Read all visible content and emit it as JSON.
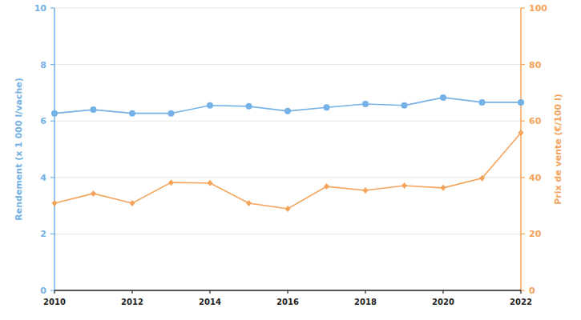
{
  "chart_data": {
    "type": "line",
    "x": [
      2010,
      2011,
      2012,
      2013,
      2014,
      2015,
      2016,
      2017,
      2018,
      2019,
      2020,
      2021,
      2022
    ],
    "xlim": [
      2010,
      2022
    ],
    "xticks": [
      2010,
      2012,
      2014,
      2016,
      2018,
      2020,
      2022
    ],
    "y_label": "Rendement (x 1 000 l/vache)",
    "y2_label": "Prix de vente (€/100 l)",
    "ylim": [
      0,
      10
    ],
    "yticks": [
      0,
      2,
      4,
      6,
      8,
      10
    ],
    "y2lim": [
      0,
      100
    ],
    "y2ticks": [
      0,
      20,
      40,
      60,
      80,
      100
    ],
    "grid": true,
    "series": [
      {
        "name": "Rendement",
        "color": "#74b1e6",
        "marker": "circle",
        "axis": "y",
        "values": [
          6.27,
          6.4,
          6.27,
          6.27,
          6.55,
          6.52,
          6.35,
          6.48,
          6.6,
          6.55,
          6.83,
          6.66,
          6.66
        ]
      },
      {
        "name": "Prix de vente",
        "color": "#f5a35a",
        "marker": "diamond",
        "axis": "y2",
        "values": [
          30.9,
          34.3,
          30.9,
          38.2,
          38.0,
          30.9,
          28.9,
          36.8,
          35.4,
          37.1,
          36.3,
          39.7,
          55.8
        ]
      }
    ]
  }
}
